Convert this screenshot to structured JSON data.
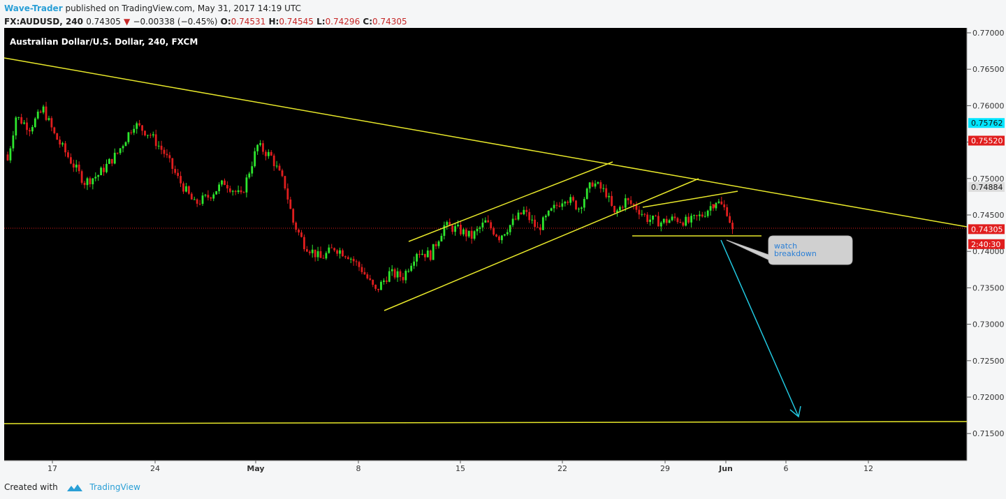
{
  "header": {
    "author": "Wave-Trader",
    "published_text": "published on TradingView.com, May 31, 2017 14:19 UTC",
    "symbol": "FX:AUDUSD, 240",
    "last": "0.74305",
    "change": "−0.00338 (−0.45%)",
    "open_label": "O:",
    "open": "0.74531",
    "high_label": "H:",
    "high": "0.74545",
    "low_label": "L:",
    "low": "0.74296",
    "close_label": "C:",
    "close": "0.74305"
  },
  "chart_data": {
    "type": "candlestick",
    "title": "Australian Dollar/U.S. Dollar, 240, FXCM",
    "x_ticks": [
      "17",
      "24",
      "May",
      "8",
      "15",
      "22",
      "29",
      "Jun",
      "6",
      "12"
    ],
    "y_ticks": [
      "0.77000",
      "0.76500",
      "0.76000",
      "0.75500",
      "0.75000",
      "0.74500",
      "0.74000",
      "0.73500",
      "0.73000",
      "0.72500",
      "0.72000",
      "0.71500"
    ],
    "ylim": [
      0.7105,
      0.7715
    ],
    "grid": false,
    "price_labels": [
      {
        "text": "0.75762",
        "value": 0.75762,
        "color": "#00e5ff"
      },
      {
        "text": "0.75520",
        "value": 0.7552,
        "color": "#e01e1e"
      },
      {
        "text": "0.74884",
        "value": 0.74884,
        "color": "#dddddd"
      },
      {
        "text": "0.74305",
        "value": 0.74305,
        "color": "#e01e1e"
      },
      {
        "text": "2:40:30",
        "value": 0.741,
        "color": "#e01e1e"
      }
    ],
    "annotation": "watch\nbreakdown",
    "colors": {
      "up": "#2ee62e",
      "down": "#e01e1e",
      "trendline": "#e8e82a",
      "arrow": "#21c8e0",
      "background": "#000000"
    }
  },
  "footer": {
    "created_with": "Created with",
    "brand": "TradingView"
  }
}
